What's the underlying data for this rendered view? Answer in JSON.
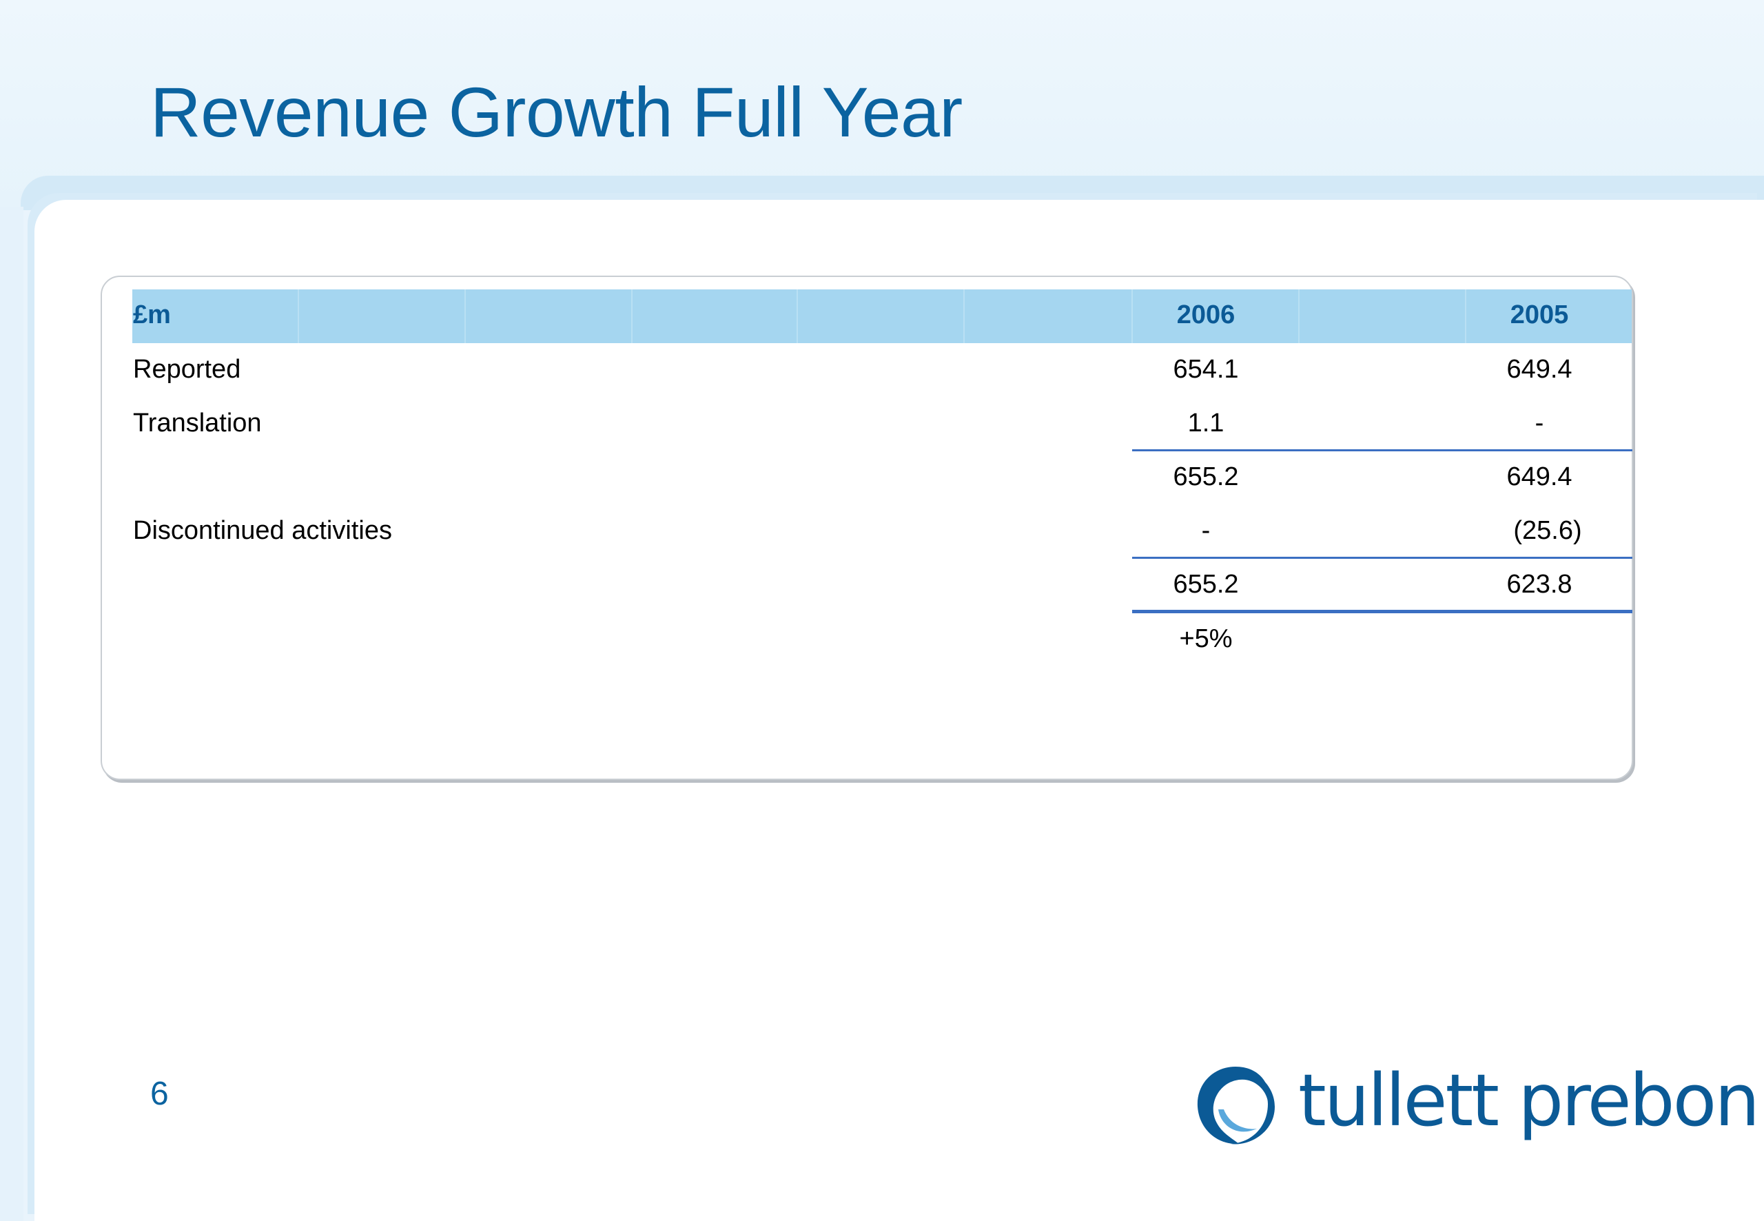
{
  "slide": {
    "title": "Revenue Growth Full Year",
    "page_number": "6"
  },
  "table": {
    "header": {
      "label": "£m",
      "col_2006": "2006",
      "col_2005": "2005"
    },
    "rows": [
      {
        "label": "Reported",
        "v2006": "654.1",
        "v2005": "649.4"
      },
      {
        "label": "Translation",
        "v2006": "1.1",
        "v2005": "-"
      },
      {
        "label": "",
        "v2006": "655.2",
        "v2005": "649.4"
      },
      {
        "label": "Discontinued activities",
        "v2006": "-",
        "v2005": "(25.6)"
      },
      {
        "label": "",
        "v2006": "655.2",
        "v2005": "623.8"
      },
      {
        "label": "",
        "v2006": "+5%",
        "v2005": ""
      }
    ]
  },
  "logo": {
    "text": "tullett prebon",
    "icon": "tullett-prebon-logo-icon",
    "color": "#0b5a96"
  },
  "colors": {
    "title": "#0b63a0",
    "header_bar": "#a5d6f0",
    "rule": "#3b6fc2"
  }
}
